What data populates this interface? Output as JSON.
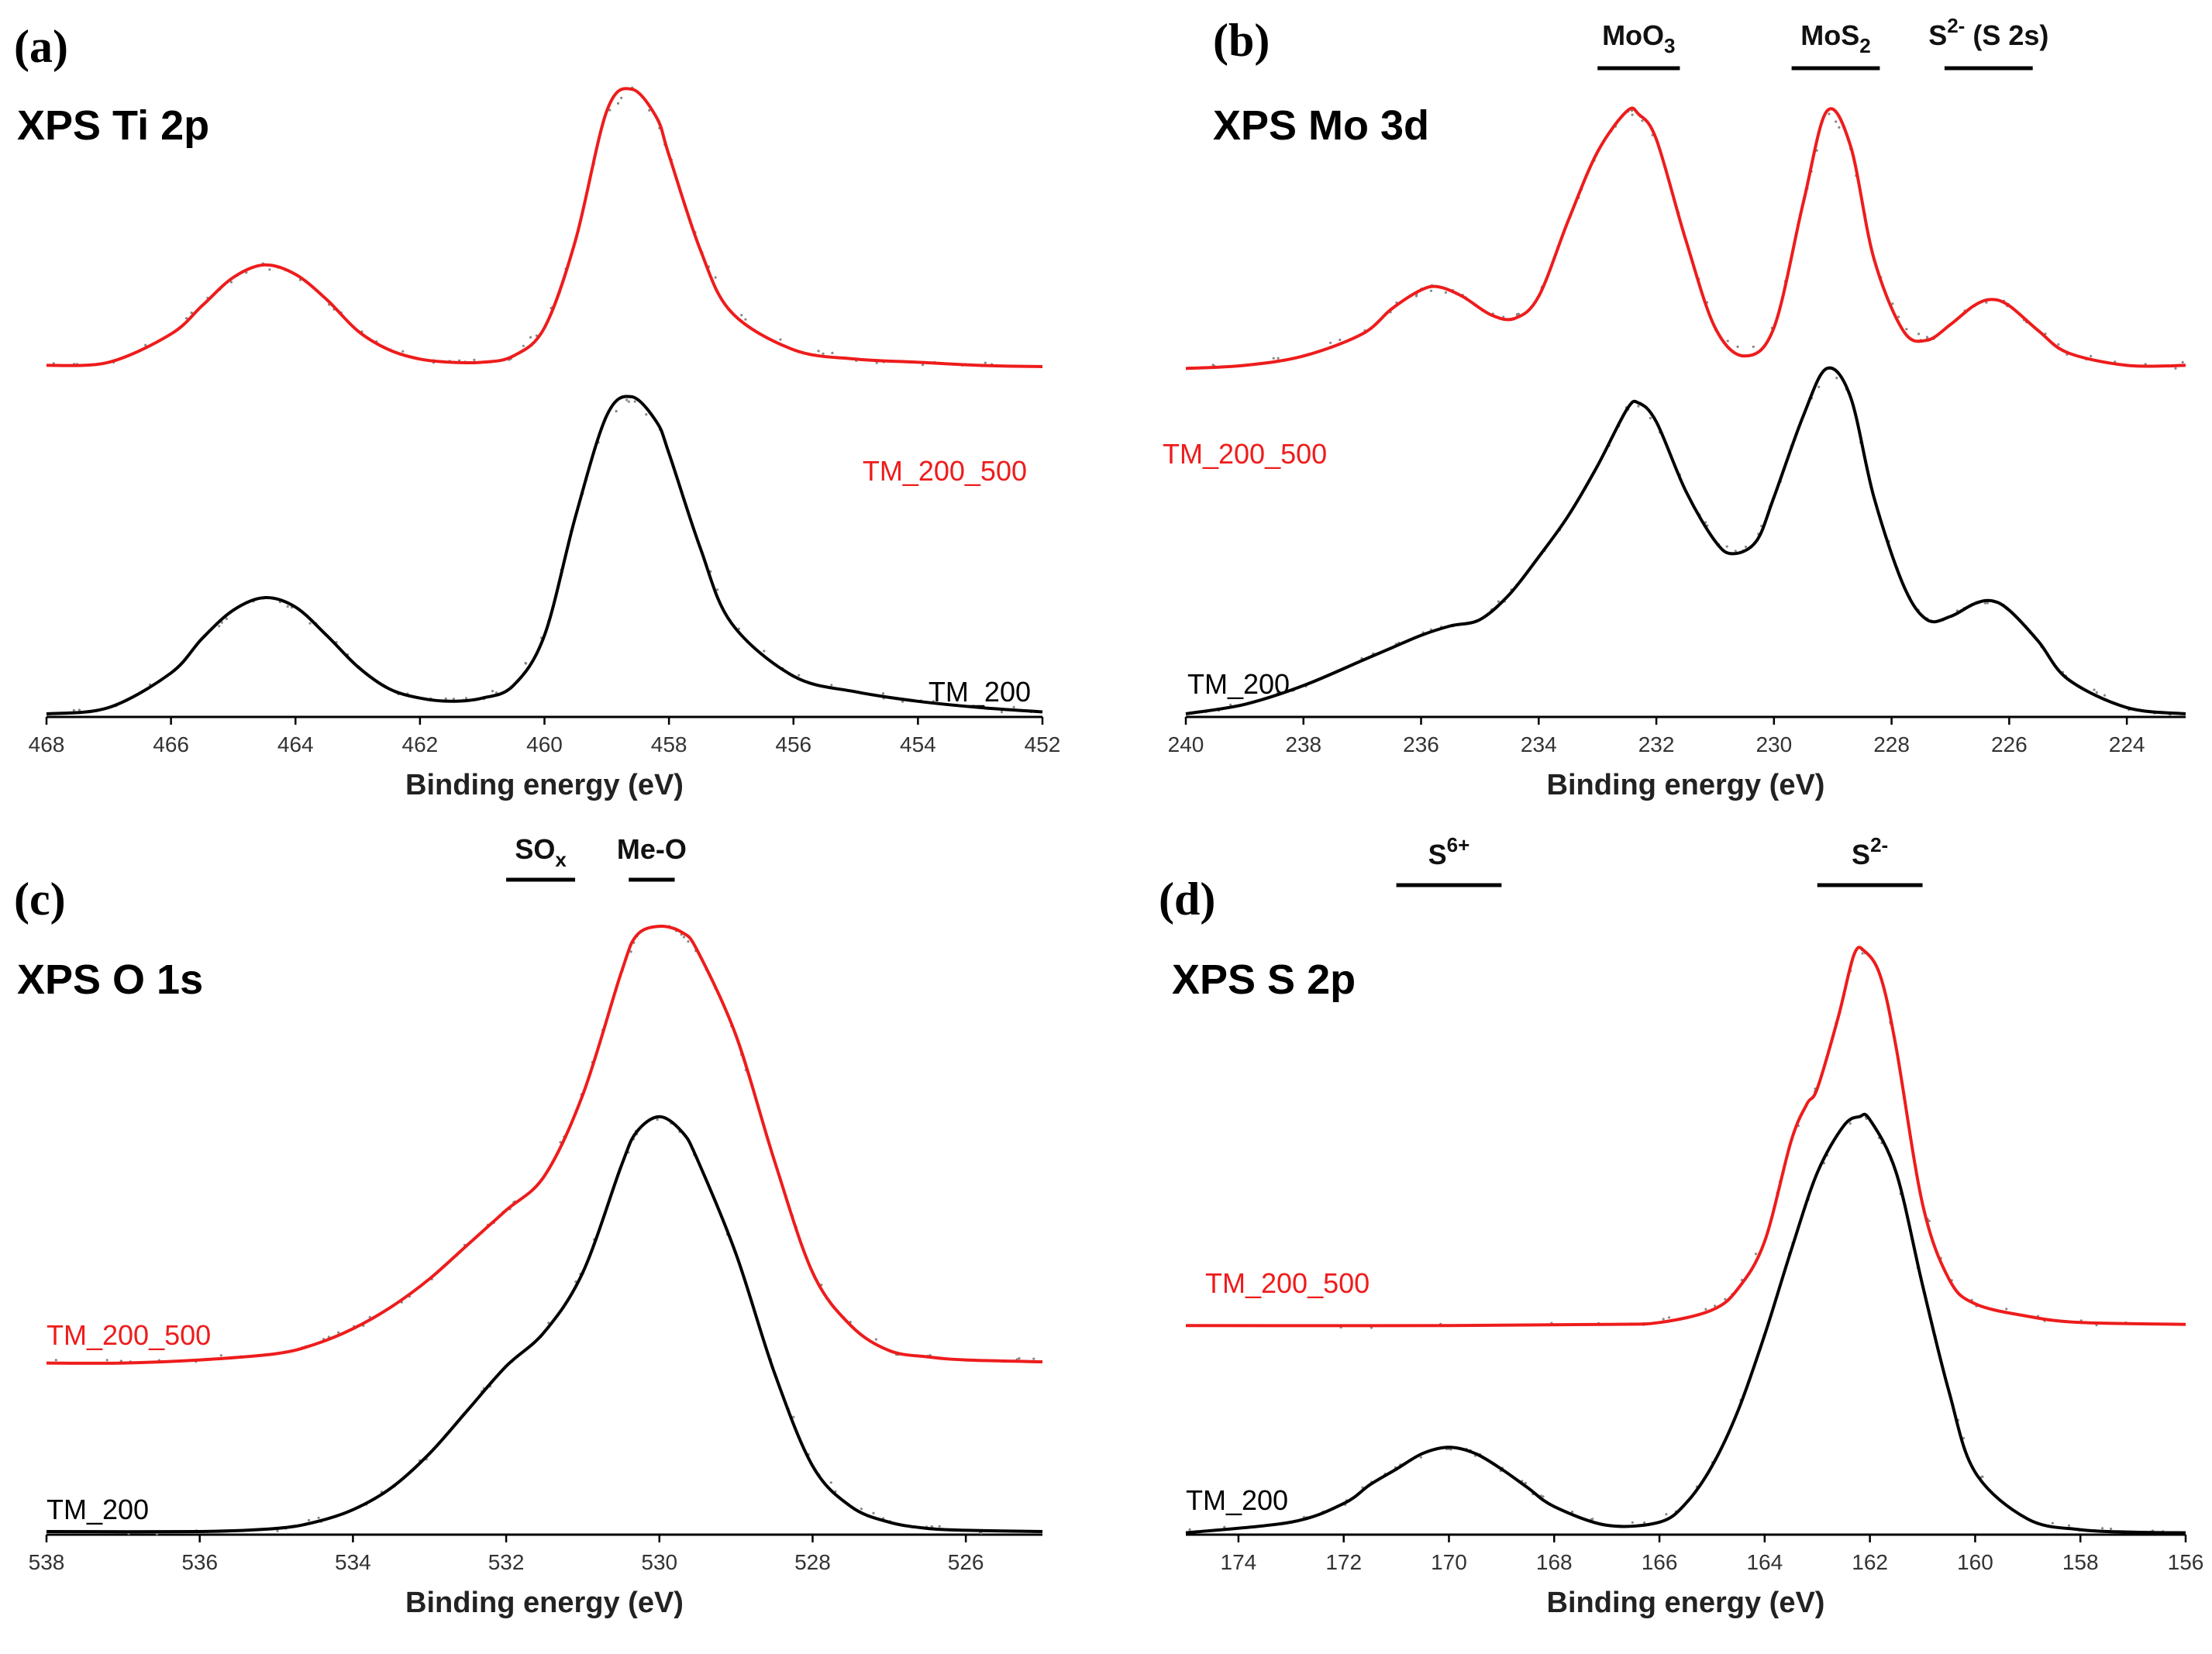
{
  "colors": {
    "red_series": "#ee1c1c",
    "black_series": "#000000",
    "axis": "#000000",
    "points": "#888888"
  },
  "chart_data": [
    {
      "type": "line",
      "panel_letter": "(a)",
      "title": "XPS Ti 2p",
      "xlabel": "Binding energy (eV)",
      "ylabel": "",
      "xlim": [
        468,
        452
      ],
      "ylim": [
        0,
        1
      ],
      "xticks": [
        468,
        466,
        464,
        462,
        460,
        458,
        456,
        454,
        452
      ],
      "annotations": [],
      "series": [
        {
          "name": "TM_200_500",
          "color": "#ee1c1c",
          "baseline": 0.555,
          "x": [
            468,
            467,
            466,
            465.5,
            465,
            464.5,
            464,
            463.5,
            463,
            462.5,
            462,
            461.5,
            461,
            460.5,
            460,
            459.5,
            459,
            458.6,
            458.2,
            458,
            457.5,
            457,
            456,
            455,
            454,
            453,
            452
          ],
          "y": [
            0.56,
            0.565,
            0.61,
            0.655,
            0.7,
            0.72,
            0.705,
            0.665,
            0.615,
            0.585,
            0.57,
            0.565,
            0.565,
            0.575,
            0.62,
            0.76,
            0.965,
            1.0,
            0.955,
            0.895,
            0.745,
            0.645,
            0.585,
            0.57,
            0.565,
            0.56,
            0.558
          ]
        },
        {
          "name": "TM_200",
          "color": "#000000",
          "baseline": 0.0,
          "x": [
            468,
            467,
            466,
            465.5,
            465,
            464.5,
            464,
            463.5,
            463,
            462.5,
            462,
            461.5,
            461,
            460.5,
            460,
            459.5,
            459,
            458.6,
            458.2,
            458,
            457.5,
            457,
            456,
            455,
            454,
            453,
            452
          ],
          "y": [
            0.005,
            0.015,
            0.07,
            0.125,
            0.17,
            0.19,
            0.175,
            0.13,
            0.08,
            0.045,
            0.03,
            0.025,
            0.03,
            0.05,
            0.13,
            0.32,
            0.48,
            0.51,
            0.47,
            0.42,
            0.27,
            0.15,
            0.065,
            0.04,
            0.025,
            0.015,
            0.008
          ]
        }
      ]
    },
    {
      "type": "line",
      "panel_letter": "(b)",
      "title": "XPS Mo 3d",
      "xlabel": "Binding energy (eV)",
      "ylabel": "",
      "xlim": [
        240,
        223
      ],
      "ylim": [
        0,
        1
      ],
      "xticks": [
        240,
        238,
        236,
        234,
        232,
        230,
        228,
        226,
        224
      ],
      "annotations": [
        {
          "label": "MoO",
          "sub": "3",
          "x_from": 233.0,
          "x_to": 231.6
        },
        {
          "label": "MoS",
          "sub": "2",
          "x_from": 229.7,
          "x_to": 228.2
        },
        {
          "label": "S",
          "sup": "2-",
          "suffix": " (S 2s)",
          "x_from": 227.1,
          "x_to": 225.6
        }
      ],
      "series": [
        {
          "name": "TM_200_500",
          "color": "#ee1c1c",
          "baseline": 0.555,
          "x": [
            240,
            239,
            238,
            237,
            236.5,
            236,
            235.7,
            235.3,
            234.8,
            234.4,
            234,
            233.5,
            233,
            232.5,
            232.3,
            232,
            231.5,
            231,
            230.5,
            230,
            229.5,
            229.1,
            228.7,
            228.3,
            227.8,
            227.4,
            227,
            226.6,
            226.3,
            226,
            225.5,
            225,
            224,
            223
          ],
          "y": [
            0.555,
            0.56,
            0.575,
            0.61,
            0.65,
            0.68,
            0.685,
            0.67,
            0.64,
            0.635,
            0.67,
            0.79,
            0.9,
            0.965,
            0.96,
            0.92,
            0.76,
            0.62,
            0.575,
            0.62,
            0.82,
            0.965,
            0.91,
            0.73,
            0.615,
            0.6,
            0.625,
            0.655,
            0.665,
            0.655,
            0.615,
            0.58,
            0.56,
            0.56
          ]
        },
        {
          "name": "TM_200",
          "color": "#000000",
          "baseline": 0.0,
          "x": [
            240,
            239,
            238,
            237,
            236.5,
            236,
            235.5,
            235,
            234.5,
            234,
            233.5,
            233,
            232.5,
            232.3,
            232,
            231.5,
            231,
            230.7,
            230.3,
            230,
            229.5,
            229.1,
            228.7,
            228.3,
            227.8,
            227.4,
            227,
            226.6,
            226.3,
            226,
            225.5,
            225,
            224,
            223
          ],
          "y": [
            0.005,
            0.02,
            0.05,
            0.09,
            0.11,
            0.13,
            0.145,
            0.155,
            0.195,
            0.255,
            0.32,
            0.4,
            0.49,
            0.5,
            0.47,
            0.36,
            0.28,
            0.26,
            0.28,
            0.35,
            0.48,
            0.555,
            0.51,
            0.35,
            0.21,
            0.155,
            0.16,
            0.18,
            0.185,
            0.17,
            0.12,
            0.06,
            0.015,
            0.005
          ]
        }
      ]
    },
    {
      "type": "line",
      "panel_letter": "(c)",
      "title": "XPS O 1s",
      "xlabel": "Binding energy (eV)",
      "ylabel": "",
      "xlim": [
        538,
        525
      ],
      "ylim": [
        0,
        1
      ],
      "xticks": [
        538,
        536,
        534,
        532,
        530,
        528,
        526
      ],
      "annotations": [
        {
          "label": "SO",
          "sub": "x",
          "x_from": 532.0,
          "x_to": 531.1
        },
        {
          "label": "Me-O",
          "x_from": 530.4,
          "x_to": 529.8
        }
      ],
      "series": [
        {
          "name": "TM_200_500",
          "color": "#ee1c1c",
          "baseline": 0.275,
          "x": [
            538,
            537,
            536,
            535,
            534.5,
            534,
            533.5,
            533,
            532.5,
            532,
            531.5,
            531,
            530.5,
            530.3,
            530,
            529.7,
            529.5,
            529,
            528.5,
            528,
            527.5,
            527,
            526.5,
            526,
            525
          ],
          "y": [
            0.275,
            0.275,
            0.28,
            0.29,
            0.305,
            0.33,
            0.365,
            0.41,
            0.465,
            0.52,
            0.575,
            0.705,
            0.9,
            0.96,
            0.975,
            0.965,
            0.935,
            0.8,
            0.6,
            0.42,
            0.335,
            0.295,
            0.285,
            0.28,
            0.277
          ]
        },
        {
          "name": "TM_200",
          "color": "#000000",
          "baseline": 0.0,
          "x": [
            538,
            536,
            535,
            534.5,
            534,
            533.5,
            533,
            532.5,
            532,
            531.5,
            531,
            530.5,
            530.3,
            530,
            529.7,
            529.5,
            529,
            528.5,
            528,
            527.5,
            527,
            526.5,
            526,
            525
          ],
          "y": [
            0.005,
            0.005,
            0.01,
            0.02,
            0.04,
            0.075,
            0.13,
            0.2,
            0.27,
            0.325,
            0.42,
            0.59,
            0.645,
            0.67,
            0.645,
            0.6,
            0.45,
            0.26,
            0.11,
            0.045,
            0.02,
            0.01,
            0.007,
            0.005
          ]
        }
      ]
    },
    {
      "type": "line",
      "panel_letter": "(d)",
      "title": "XPS S 2p",
      "xlabel": "Binding energy (eV)",
      "ylabel": "",
      "xlim": [
        175,
        156
      ],
      "ylim": [
        0,
        1
      ],
      "xticks": [
        174,
        172,
        170,
        168,
        166,
        164,
        162,
        160,
        158,
        156
      ],
      "annotations": [
        {
          "label": "S",
          "sup": "6+",
          "x_from": 171.0,
          "x_to": 169.0
        },
        {
          "label": "S",
          "sup": "2-",
          "x_from": 163.0,
          "x_to": 161.0
        }
      ],
      "series": [
        {
          "name": "TM_200_500",
          "color": "#ee1c1c",
          "baseline": 0.335,
          "x": [
            175,
            170,
            167,
            166,
            165,
            164.5,
            164,
            163.5,
            163.2,
            163,
            162.6,
            162.3,
            162.1,
            161.8,
            161.5,
            161,
            160.5,
            160,
            159,
            158,
            156
          ],
          "y": [
            0.335,
            0.335,
            0.337,
            0.34,
            0.36,
            0.395,
            0.47,
            0.63,
            0.69,
            0.715,
            0.83,
            0.93,
            0.935,
            0.895,
            0.78,
            0.53,
            0.41,
            0.37,
            0.35,
            0.34,
            0.337
          ]
        },
        {
          "name": "TM_200",
          "color": "#000000",
          "baseline": 0.0,
          "x": [
            175,
            173,
            172,
            171.5,
            171,
            170.5,
            170,
            169.5,
            169,
            168.5,
            168,
            167,
            166,
            165.5,
            165,
            164.5,
            164,
            163.5,
            163,
            162.5,
            162.2,
            162,
            161.5,
            161,
            160.5,
            160,
            159,
            158,
            157,
            156
          ],
          "y": [
            0.003,
            0.02,
            0.05,
            0.08,
            0.105,
            0.13,
            0.14,
            0.13,
            0.105,
            0.075,
            0.045,
            0.015,
            0.02,
            0.05,
            0.11,
            0.2,
            0.32,
            0.455,
            0.58,
            0.655,
            0.67,
            0.665,
            0.58,
            0.4,
            0.23,
            0.1,
            0.025,
            0.008,
            0.004,
            0.003
          ]
        }
      ]
    }
  ]
}
